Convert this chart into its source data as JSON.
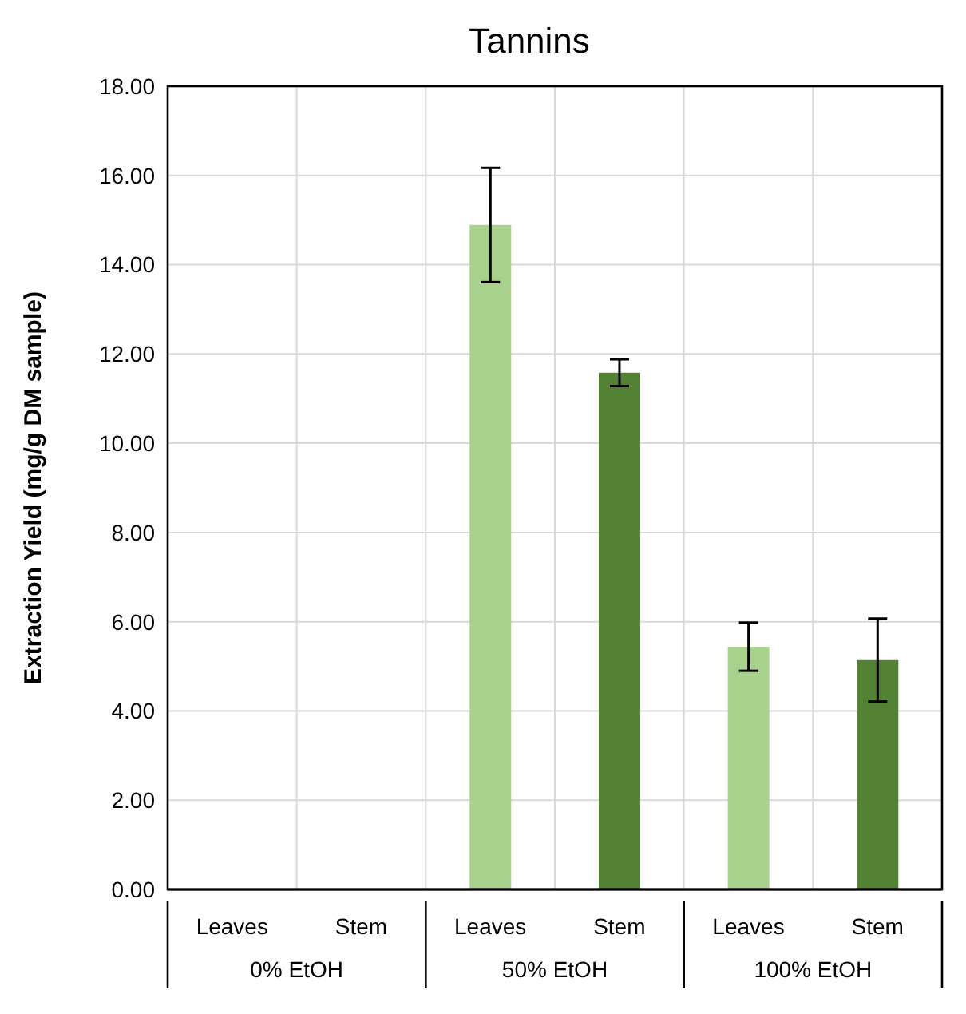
{
  "chart_data": {
    "type": "bar",
    "title": "Tannins",
    "ylabel": "Extraction Yield (mg/g DM sample)",
    "categories": [
      "Leaves",
      "Stem",
      "Leaves",
      "Stem",
      "Leaves",
      "Stem"
    ],
    "values": [
      0,
      0,
      14.89,
      11.58,
      5.44,
      5.14
    ],
    "errors": [
      null,
      null,
      1.28,
      0.3,
      0.54,
      0.93
    ],
    "colors": [
      "#a9d18e",
      "#548235",
      "#a9d18e",
      "#548235",
      "#a9d18e",
      "#548235"
    ],
    "annotations": [
      "0% EtOH",
      "50% EtOH",
      "100% EtOH"
    ],
    "ylim": [
      0,
      18
    ],
    "yticks": [
      {
        "value": 0,
        "label": "0.00"
      },
      {
        "value": 2,
        "label": "2.00"
      },
      {
        "value": 4,
        "label": "4.00"
      },
      {
        "value": 6,
        "label": "6.00"
      },
      {
        "value": 8,
        "label": "8.00"
      },
      {
        "value": 10,
        "label": "10.00"
      },
      {
        "value": 12,
        "label": "12.00"
      },
      {
        "value": 14,
        "label": "14.00"
      },
      {
        "value": 16,
        "label": "16.00"
      },
      {
        "value": 18,
        "label": "18.00"
      }
    ],
    "grid": true
  }
}
